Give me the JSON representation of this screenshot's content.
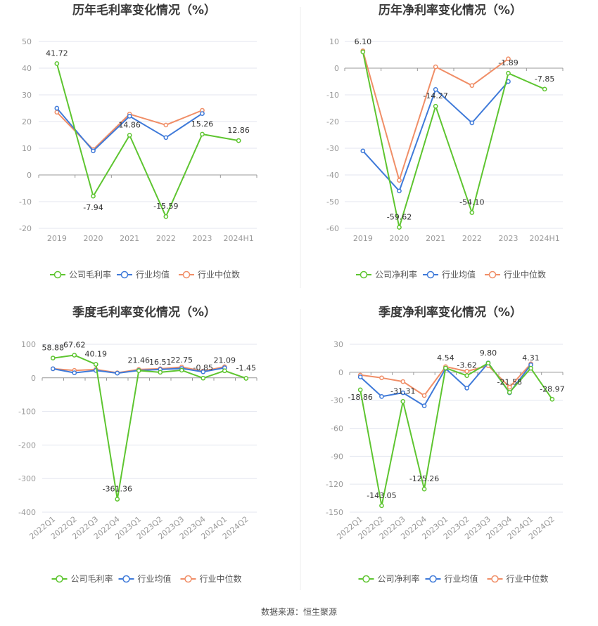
{
  "source_label": "数据来源：恒生聚源",
  "colors": {
    "company": "#5ec530",
    "avg": "#3f7ad9",
    "median": "#f08e67",
    "grid": "#e3e6ef",
    "axis": "#999999"
  },
  "chart_data": [
    {
      "type": "line",
      "title": "历年毛利率变化情况（%）",
      "categories": [
        "2019",
        "2020",
        "2021",
        "2022",
        "2023",
        "2024H1"
      ],
      "yticks": [
        50,
        40,
        30,
        20,
        10,
        0,
        -10,
        -20
      ],
      "ylim": [
        -20,
        50
      ],
      "series": [
        {
          "name": "公司毛利率",
          "key": "company",
          "values": [
            41.72,
            -7.94,
            14.86,
            -15.59,
            15.26,
            12.86
          ],
          "labels": [
            "41.72",
            "-7.94",
            "14.86",
            "-15.59",
            "15.26",
            "12.86"
          ]
        },
        {
          "name": "行业均值",
          "key": "avg",
          "values": [
            25.0,
            9.0,
            22.0,
            14.0,
            23.0,
            null
          ]
        },
        {
          "name": "行业中位数",
          "key": "median",
          "values": [
            23.5,
            9.5,
            22.8,
            18.7,
            24.2,
            null
          ]
        }
      ]
    },
    {
      "type": "line",
      "title": "历年净利率变化情况（%）",
      "categories": [
        "2019",
        "2020",
        "2021",
        "2022",
        "2023",
        "2024H1"
      ],
      "yticks": [
        10,
        0,
        -10,
        -20,
        -30,
        -40,
        -50,
        -60
      ],
      "ylim": [
        -60,
        10
      ],
      "series": [
        {
          "name": "公司净利率",
          "key": "company",
          "values": [
            6.1,
            -59.62,
            -14.27,
            -54.1,
            -1.89,
            -7.85
          ],
          "labels": [
            "6.10",
            "-59.62",
            "-14.27",
            "-54.10",
            "-1.89",
            "-7.85"
          ]
        },
        {
          "name": "行业均值",
          "key": "avg",
          "values": [
            -31.0,
            -46.0,
            -8.0,
            -20.5,
            -5.0,
            null
          ]
        },
        {
          "name": "行业中位数",
          "key": "median",
          "values": [
            6.5,
            -42.0,
            0.5,
            -6.5,
            3.5,
            null
          ]
        }
      ]
    },
    {
      "type": "line",
      "title": "季度毛利率变化情况（%）",
      "categories": [
        "2022Q1",
        "2022Q2",
        "2022Q3",
        "2022Q4",
        "2023Q1",
        "2023Q2",
        "2023Q3",
        "2023Q4",
        "2024Q1",
        "2024Q2"
      ],
      "yticks": [
        100,
        0,
        -100,
        -200,
        -300,
        -400
      ],
      "ylim": [
        -400,
        100
      ],
      "series": [
        {
          "name": "公司毛利率",
          "key": "company",
          "values": [
            58.88,
            67.62,
            40.19,
            -361.36,
            21.46,
            16.51,
            22.75,
            -0.85,
            21.09,
            -1.45
          ],
          "labels": [
            "58.88",
            "67.62",
            "40.19",
            "-361.36",
            "21.46",
            "16.51",
            "22.75",
            "-0.85",
            "21.09",
            "-1.45"
          ]
        },
        {
          "name": "行业均值",
          "key": "avg",
          "values": [
            27,
            15,
            22,
            14,
            22,
            25,
            28,
            18,
            30,
            null
          ]
        },
        {
          "name": "行业中位数",
          "key": "median",
          "values": [
            27,
            22,
            25,
            15,
            25,
            27,
            32,
            20,
            33,
            null
          ]
        }
      ]
    },
    {
      "type": "line",
      "title": "季度净利率变化情况（%）",
      "categories": [
        "2022Q1",
        "2022Q2",
        "2022Q3",
        "2022Q4",
        "2023Q1",
        "2023Q2",
        "2023Q3",
        "2023Q4",
        "2024Q1",
        "2024Q2"
      ],
      "yticks": [
        30,
        0,
        -30,
        -60,
        -90,
        -120,
        -150
      ],
      "ylim": [
        -150,
        30
      ],
      "series": [
        {
          "name": "公司净利率",
          "key": "company",
          "values": [
            -18.86,
            -143.05,
            -31.31,
            -125.26,
            4.54,
            -3.62,
            9.8,
            -21.58,
            4.31,
            -28.97
          ],
          "labels": [
            "-18.86",
            "-143.05",
            "-31.31",
            "-125.26",
            "4.54",
            "-3.62",
            "9.80",
            "-21.58",
            "4.31",
            "-28.97"
          ]
        },
        {
          "name": "行业均值",
          "key": "avg",
          "values": [
            -5,
            -26,
            -22,
            -36,
            4,
            -17,
            10,
            -22,
            8,
            null
          ]
        },
        {
          "name": "行业中位数",
          "key": "median",
          "values": [
            -3,
            -6,
            -10,
            -25,
            6,
            1,
            7,
            -16,
            9,
            null
          ]
        }
      ]
    }
  ]
}
